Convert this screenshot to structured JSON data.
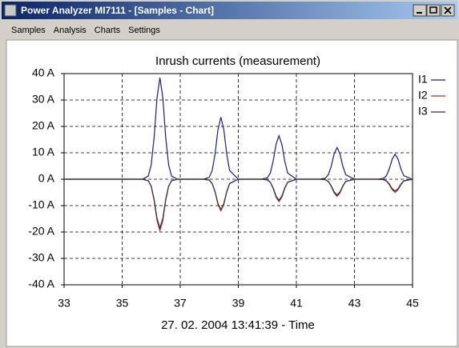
{
  "window": {
    "title": "Power Analyzer  MI7111 - [Samples - Chart]",
    "menu": [
      "Samples",
      "Analysis",
      "Charts",
      "Settings"
    ]
  },
  "chart_data": {
    "type": "line",
    "title": "Inrush currents (measurement)",
    "x_label": "27. 02. 2004 13:41:39 - Time",
    "x": [
      33,
      35.5,
      35.7,
      35.9,
      36.0,
      36.1,
      36.2,
      36.3,
      36.4,
      36.5,
      36.6,
      36.7,
      36.9,
      37.8,
      38.0,
      38.1,
      38.2,
      38.3,
      38.4,
      38.5,
      38.6,
      38.7,
      39.0,
      39.8,
      40.0,
      40.1,
      40.2,
      40.3,
      40.4,
      40.5,
      40.6,
      40.7,
      41.0,
      41.8,
      42.0,
      42.1,
      42.2,
      42.3,
      42.4,
      42.5,
      42.6,
      42.7,
      43.0,
      43.8,
      44.0,
      44.1,
      44.2,
      44.3,
      44.4,
      44.5,
      44.6,
      44.7,
      45
    ],
    "series": [
      {
        "name": "I1",
        "color": "#1c1c8a",
        "values": [
          0,
          0,
          0,
          1.2,
          5.4,
          15.8,
          30.8,
          38.5,
          30.8,
          15.8,
          5.4,
          1.2,
          0,
          0,
          0.7,
          3.3,
          9.6,
          18.8,
          23.5,
          18.8,
          9.6,
          3.3,
          0,
          0,
          0.5,
          2.3,
          6.8,
          13.2,
          16.5,
          13.2,
          6.8,
          2.3,
          0,
          0,
          0.4,
          1.7,
          4.9,
          9.6,
          12,
          9.6,
          4.9,
          1.7,
          0,
          0,
          0.3,
          1.3,
          3.9,
          7.6,
          9.5,
          7.6,
          3.9,
          1.3,
          0
        ]
      },
      {
        "name": "I2",
        "color": "#b03030",
        "values": [
          0,
          0,
          0,
          -0.6,
          -2.7,
          -8,
          -15.6,
          -19.5,
          -15.6,
          -8,
          -2.7,
          -0.6,
          0,
          0,
          -0.4,
          -1.7,
          -4.9,
          -9.6,
          -12,
          -9.6,
          -4.9,
          -1.7,
          0,
          0,
          -0.3,
          -1.2,
          -3.5,
          -6.8,
          -8.5,
          -6.8,
          -3.5,
          -1.2,
          0,
          0,
          -0.2,
          -0.9,
          -2.7,
          -5.2,
          -6.5,
          -5.2,
          -2.7,
          -0.9,
          0,
          0,
          -0.2,
          -0.7,
          -2.1,
          -4,
          -5,
          -4,
          -2.1,
          -0.7,
          0
        ]
      },
      {
        "name": "I3",
        "color": "#333333",
        "values": [
          0,
          0,
          0,
          -0.6,
          -2.6,
          -7.6,
          -14.8,
          -18.5,
          -14.8,
          -7.6,
          -2.6,
          -0.6,
          0,
          0,
          -0.3,
          -1.6,
          -4.7,
          -9.2,
          -11.5,
          -9.2,
          -4.7,
          -1.6,
          0,
          0,
          -0.2,
          -1.1,
          -3.3,
          -6.4,
          -8,
          -6.4,
          -3.3,
          -1.1,
          0,
          0,
          -0.2,
          -0.8,
          -2.5,
          -4.8,
          -6,
          -4.8,
          -2.5,
          -0.8,
          0,
          0,
          -0.1,
          -0.6,
          -1.8,
          -3.6,
          -4.5,
          -3.6,
          -1.8,
          -0.6,
          0
        ]
      }
    ],
    "xlim": [
      33,
      45
    ],
    "xticks": [
      33,
      35,
      37,
      39,
      41,
      43,
      45
    ],
    "ylim": [
      -40,
      40
    ],
    "yticks": [
      {
        "value": -40,
        "label": "-40 A"
      },
      {
        "value": -30,
        "label": "-30 A"
      },
      {
        "value": -20,
        "label": "-20 A"
      },
      {
        "value": -10,
        "label": "-10 A"
      },
      {
        "value": 0,
        "label": "0 A"
      },
      {
        "value": 10,
        "label": "10 A"
      },
      {
        "value": 20,
        "label": "20 A"
      },
      {
        "value": 30,
        "label": "30 A"
      },
      {
        "value": 40,
        "label": "40 A"
      }
    ],
    "grid": true,
    "legend": "right"
  }
}
